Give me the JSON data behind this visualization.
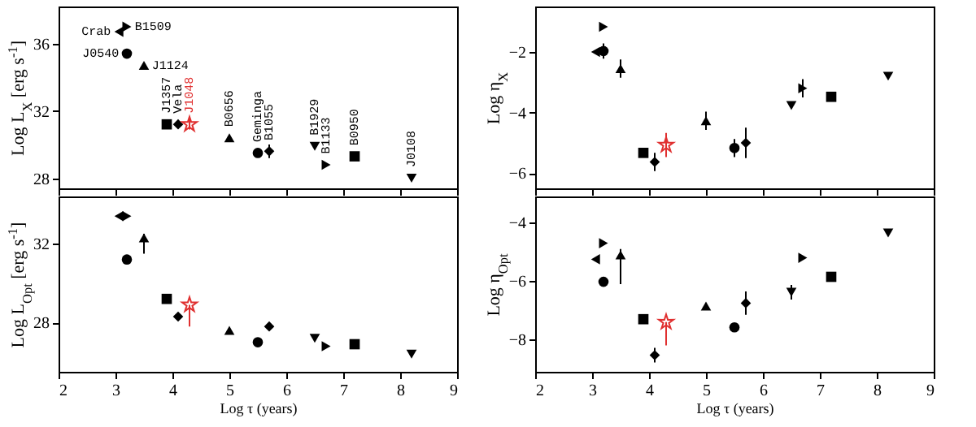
{
  "chart_data": [
    {
      "type": "scatter",
      "ylabel": "Log L$_{X}$ [erg s$^{-1}$]",
      "xlim": [
        2,
        9
      ],
      "xticks": [
        2,
        3,
        4,
        5,
        6,
        7,
        8,
        9
      ],
      "ylim": [
        27.4,
        38.2
      ],
      "yticks": [
        28,
        32,
        36
      ],
      "tick_labels": "y",
      "grid": false,
      "series": [
        {
          "name": "Crab",
          "x": [
            3.06
          ],
          "values": [
            36.7
          ],
          "color": "#000000",
          "marker": "triangle-left"
        },
        {
          "name": "B1509",
          "x": [
            3.2
          ],
          "values": [
            37.0
          ],
          "color": "#000000",
          "marker": "triangle-right"
        },
        {
          "name": "J1124",
          "x": [
            3.5
          ],
          "values": [
            34.7
          ],
          "color": "#000000",
          "marker": "triangle"
        },
        {
          "name": "J0540",
          "x": [
            3.2
          ],
          "values": [
            35.4
          ],
          "color": "#000000",
          "marker": "circle"
        },
        {
          "name": "J1357",
          "x": [
            3.9
          ],
          "values": [
            31.2
          ],
          "color": "#000000",
          "marker": "square"
        },
        {
          "name": "Vela",
          "x": [
            4.1
          ],
          "values": [
            31.2
          ],
          "color": "#000000",
          "marker": "diamond"
        },
        {
          "name": "J1048",
          "x": [
            4.3
          ],
          "values": [
            31.2
          ],
          "errors": [
            0.3
          ],
          "color": "#e03030",
          "marker": "star"
        },
        {
          "name": "B0656",
          "x": [
            5.0
          ],
          "values": [
            30.4
          ],
          "color": "#000000",
          "marker": "triangle"
        },
        {
          "name": "Geminga",
          "x": [
            5.5
          ],
          "values": [
            29.5
          ],
          "color": "#000000",
          "marker": "circle"
        },
        {
          "name": "B1055",
          "x": [
            5.7
          ],
          "values": [
            29.6
          ],
          "errors": [
            0.4
          ],
          "color": "#000000",
          "marker": "diamond"
        },
        {
          "name": "B1929",
          "x": [
            6.5
          ],
          "values": [
            29.9
          ],
          "color": "#000000",
          "marker": "triangle-down"
        },
        {
          "name": "B1133",
          "x": [
            6.7
          ],
          "values": [
            28.8
          ],
          "color": "#000000",
          "marker": "triangle-right"
        },
        {
          "name": "B0950",
          "x": [
            7.2
          ],
          "values": [
            29.3
          ],
          "color": "#000000",
          "marker": "square"
        },
        {
          "name": "J0108",
          "x": [
            8.2
          ],
          "values": [
            28.0
          ],
          "color": "#000000",
          "marker": "triangle-down"
        }
      ]
    },
    {
      "type": "scatter",
      "xlabel": "Log τ (years)",
      "ylabel": "Log L$_{Opt}$ [erg s$^{-1}$]",
      "xlim": [
        2,
        9
      ],
      "xticks": [
        2,
        3,
        4,
        5,
        6,
        7,
        8,
        9
      ],
      "ylim": [
        25.5,
        34.4
      ],
      "yticks": [
        28,
        32
      ],
      "grid": false,
      "series": [
        {
          "x": [
            3.06
          ],
          "values": [
            33.4
          ],
          "color": "#000000",
          "marker": "triangle-left"
        },
        {
          "x": [
            3.2
          ],
          "values": [
            33.4
          ],
          "color": "#000000",
          "marker": "triangle-right"
        },
        {
          "x": [
            3.5
          ],
          "values": [
            32.3
          ],
          "errors": [
            [
              31.5,
              32.5
            ]
          ],
          "color": "#000000",
          "marker": "triangle"
        },
        {
          "x": [
            3.2
          ],
          "values": [
            31.2
          ],
          "color": "#000000",
          "marker": "circle"
        },
        {
          "x": [
            3.9
          ],
          "values": [
            29.2
          ],
          "color": "#000000",
          "marker": "square"
        },
        {
          "x": [
            4.1
          ],
          "values": [
            28.3
          ],
          "color": "#000000",
          "marker": "diamond"
        },
        {
          "x": [
            4.3
          ],
          "values": [
            28.9
          ],
          "errors": [
            [
              27.8,
              28.9
            ]
          ],
          "color": "#e03030",
          "marker": "star"
        },
        {
          "x": [
            5.0
          ],
          "values": [
            27.6
          ],
          "color": "#000000",
          "marker": "triangle"
        },
        {
          "x": [
            5.5
          ],
          "values": [
            27.0
          ],
          "color": "#000000",
          "marker": "circle"
        },
        {
          "x": [
            5.7
          ],
          "values": [
            27.8
          ],
          "errors": [
            0.2
          ],
          "color": "#000000",
          "marker": "diamond"
        },
        {
          "x": [
            6.5
          ],
          "values": [
            27.2
          ],
          "color": "#000000",
          "marker": "triangle-down"
        },
        {
          "x": [
            6.7
          ],
          "values": [
            26.8
          ],
          "color": "#000000",
          "marker": "triangle-right"
        },
        {
          "x": [
            7.2
          ],
          "values": [
            26.9
          ],
          "color": "#000000",
          "marker": "square"
        },
        {
          "x": [
            8.2
          ],
          "values": [
            26.4
          ],
          "color": "#000000",
          "marker": "triangle-down"
        }
      ]
    },
    {
      "type": "scatter",
      "ylabel": "Log η$_{X}$",
      "xlim": [
        2,
        9
      ],
      "xticks": [
        2,
        3,
        4,
        5,
        6,
        7,
        8,
        9
      ],
      "ylim": [
        -6.5,
        -0.5
      ],
      "yticks": [
        -6,
        -4,
        -2
      ],
      "tick_labels": "y",
      "grid": false,
      "series": [
        {
          "x": [
            3.06
          ],
          "values": [
            -2.0
          ],
          "color": "#000000",
          "marker": "triangle-left"
        },
        {
          "x": [
            3.2
          ],
          "values": [
            -1.17
          ],
          "color": "#000000",
          "marker": "triangle-right"
        },
        {
          "x": [
            3.5
          ],
          "values": [
            -2.55
          ],
          "errors": [
            0.3
          ],
          "color": "#000000",
          "marker": "triangle"
        },
        {
          "x": [
            3.2
          ],
          "values": [
            -1.97
          ],
          "errors": [
            0.25
          ],
          "color": "#000000",
          "marker": "circle"
        },
        {
          "x": [
            3.9
          ],
          "values": [
            -5.33
          ],
          "color": "#000000",
          "marker": "square"
        },
        {
          "x": [
            4.1
          ],
          "values": [
            -5.63
          ],
          "errors": [
            0.3
          ],
          "color": "#000000",
          "marker": "diamond"
        },
        {
          "x": [
            4.3
          ],
          "values": [
            -5.07
          ],
          "errors": [
            0.4
          ],
          "color": "#e03030",
          "marker": "star"
        },
        {
          "x": [
            5.0
          ],
          "values": [
            -4.27
          ],
          "errors": [
            0.3
          ],
          "color": "#000000",
          "marker": "triangle"
        },
        {
          "x": [
            5.5
          ],
          "values": [
            -5.17
          ],
          "errors": [
            0.3
          ],
          "color": "#000000",
          "marker": "circle"
        },
        {
          "x": [
            5.7
          ],
          "values": [
            -5.0
          ],
          "errors": [
            0.5
          ],
          "color": "#000000",
          "marker": "diamond"
        },
        {
          "x": [
            6.5
          ],
          "values": [
            -3.77
          ],
          "color": "#000000",
          "marker": "triangle-down"
        },
        {
          "x": [
            6.7
          ],
          "values": [
            -3.2
          ],
          "errors": [
            0.3
          ],
          "color": "#000000",
          "marker": "triangle-right"
        },
        {
          "x": [
            7.2
          ],
          "values": [
            -3.48
          ],
          "color": "#000000",
          "marker": "square"
        },
        {
          "x": [
            8.2
          ],
          "values": [
            -2.8
          ],
          "color": "#000000",
          "marker": "triangle-down"
        }
      ]
    },
    {
      "type": "scatter",
      "xlabel": "Log τ (years)",
      "ylabel": "Log η$_{Opt}$",
      "xlim": [
        2,
        9
      ],
      "xticks": [
        2,
        3,
        4,
        5,
        6,
        7,
        8,
        9
      ],
      "ylim": [
        -9.1,
        -3.1
      ],
      "yticks": [
        -8,
        -6,
        -4
      ],
      "grid": false,
      "series": [
        {
          "x": [
            3.06
          ],
          "values": [
            -5.25
          ],
          "color": "#000000",
          "marker": "triangle-left"
        },
        {
          "x": [
            3.2
          ],
          "values": [
            -4.7
          ],
          "color": "#000000",
          "marker": "triangle-right"
        },
        {
          "x": [
            3.5
          ],
          "values": [
            -5.1
          ],
          "errors": [
            [
              -6.1,
              -4.9
            ]
          ],
          "color": "#000000",
          "marker": "triangle"
        },
        {
          "x": [
            3.2
          ],
          "values": [
            -6.02
          ],
          "color": "#000000",
          "marker": "circle"
        },
        {
          "x": [
            3.9
          ],
          "values": [
            -7.3
          ],
          "color": "#000000",
          "marker": "square"
        },
        {
          "x": [
            4.1
          ],
          "values": [
            -8.53
          ],
          "errors": [
            0.25
          ],
          "color": "#000000",
          "marker": "diamond"
        },
        {
          "x": [
            4.3
          ],
          "values": [
            -7.4
          ],
          "errors": [
            [
              -8.2,
              -7.4
            ]
          ],
          "color": "#e03030",
          "marker": "star"
        },
        {
          "x": [
            5.0
          ],
          "values": [
            -6.85
          ],
          "color": "#000000",
          "marker": "triangle"
        },
        {
          "x": [
            5.5
          ],
          "values": [
            -7.58
          ],
          "color": "#000000",
          "marker": "circle"
        },
        {
          "x": [
            5.7
          ],
          "values": [
            -6.75
          ],
          "errors": [
            0.4
          ],
          "color": "#000000",
          "marker": "diamond"
        },
        {
          "x": [
            6.5
          ],
          "values": [
            -6.38
          ],
          "errors": [
            0.25
          ],
          "color": "#000000",
          "marker": "triangle-down"
        },
        {
          "x": [
            6.7
          ],
          "values": [
            -5.2
          ],
          "color": "#000000",
          "marker": "triangle-right"
        },
        {
          "x": [
            7.2
          ],
          "values": [
            -5.85
          ],
          "color": "#000000",
          "marker": "square"
        },
        {
          "x": [
            8.2
          ],
          "values": [
            -4.35
          ],
          "color": "#000000",
          "marker": "triangle-down"
        }
      ]
    }
  ]
}
